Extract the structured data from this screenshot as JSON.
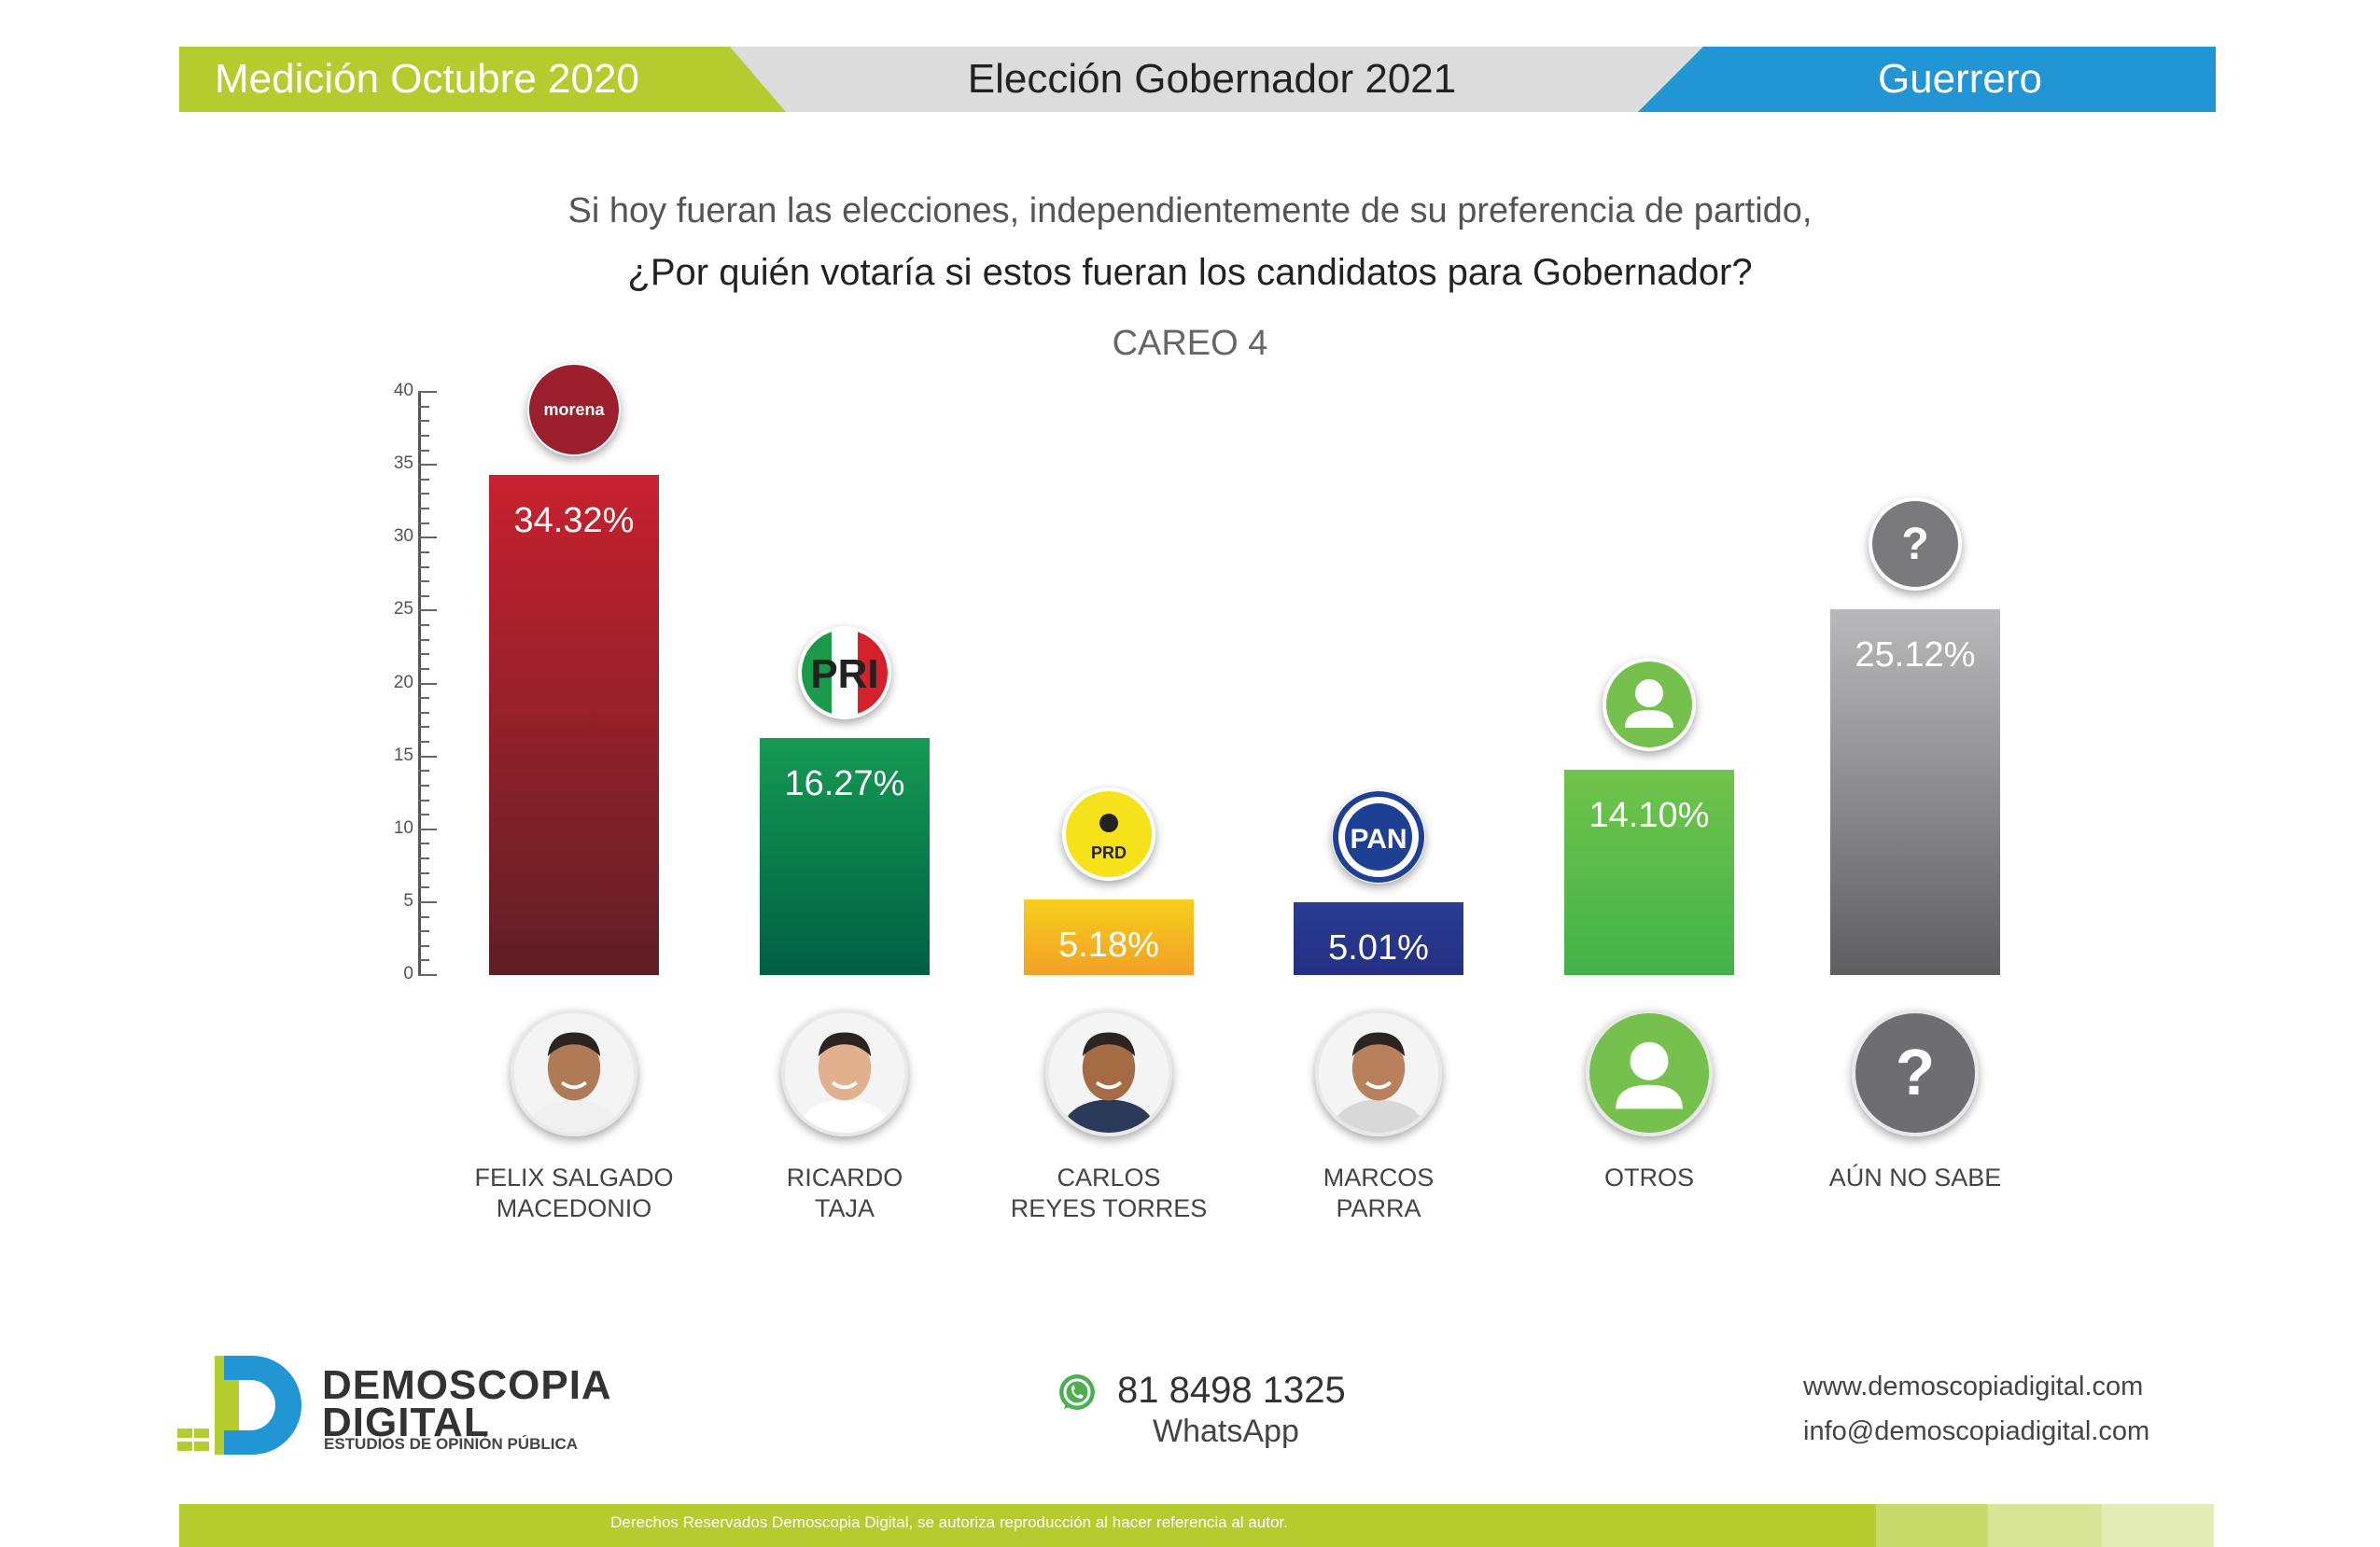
{
  "header": {
    "left": "Medición Octubre 2020",
    "center": "Elección Gobernador 2021",
    "right": "Guerrero"
  },
  "question": {
    "line1": "Si hoy fueran las elecciones, independientemente de su preferencia de partido,",
    "line2": "¿Por quién votaría si estos fueran los candidatos para Gobernador?"
  },
  "subtitle": "CAREO 4",
  "chart_data": {
    "type": "bar",
    "title": "CAREO 4",
    "categories": [
      "FELIX SALGADO MACEDONIO",
      "RICARDO TAJA",
      "CARLOS REYES TORRES",
      "MARCOS PARRA",
      "OTROS",
      "AÚN NO SABE"
    ],
    "values": [
      34.32,
      16.27,
      5.18,
      5.01,
      14.1,
      25.12
    ],
    "value_labels": [
      "34.32%",
      "16.27%",
      "5.18%",
      "5.01%",
      "14.10%",
      "25.12%"
    ],
    "party_labels": [
      "morena",
      "PRI",
      "PRD",
      "PAN",
      "",
      "?"
    ],
    "name_lines": [
      [
        "FELIX SALGADO",
        "MACEDONIO"
      ],
      [
        "RICARDO",
        "TAJA"
      ],
      [
        "CARLOS",
        "REYES TORRES"
      ],
      [
        "MARCOS",
        "PARRA"
      ],
      [
        "OTROS",
        ""
      ],
      [
        "AÚN NO SABE",
        ""
      ]
    ],
    "colors": [
      [
        "#c8212f",
        "#5e1f26"
      ],
      [
        "#159a52",
        "#005f45"
      ],
      [
        "#f7cf1c",
        "#f2a026"
      ],
      [
        "#2b3c94",
        "#232f82"
      ],
      [
        "#70c44a",
        "#42b24a"
      ],
      [
        "#b9b9bc",
        "#5e5e62"
      ]
    ],
    "icons": [
      "morena-logo",
      "pri-logo",
      "prd-logo",
      "pan-logo",
      "person-icon",
      "question-icon"
    ],
    "yticks": [
      0,
      5,
      10,
      15,
      20,
      25,
      30,
      35,
      40
    ],
    "ylim": [
      0,
      40
    ],
    "xlabel": "",
    "ylabel": ""
  },
  "contact": {
    "brand_line1": "DEMOSCOPIA",
    "brand_line2": "DIGITAL",
    "brand_tagline": "ESTUDIOS DE OPINIÓN PÚBLICA",
    "phone": "81 8498 1325",
    "phone_label": "WhatsApp",
    "website": "www.demoscopiadigital.com",
    "email": "info@demoscopiadigital.com"
  },
  "footer": "Derechos Reservados Demoscopia Digital, se autoriza reproducción al hacer referencia al autor.",
  "brand_colors": {
    "lime": "#b5cc2e",
    "blue": "#2296d4",
    "gray": "#dcdcdc"
  }
}
